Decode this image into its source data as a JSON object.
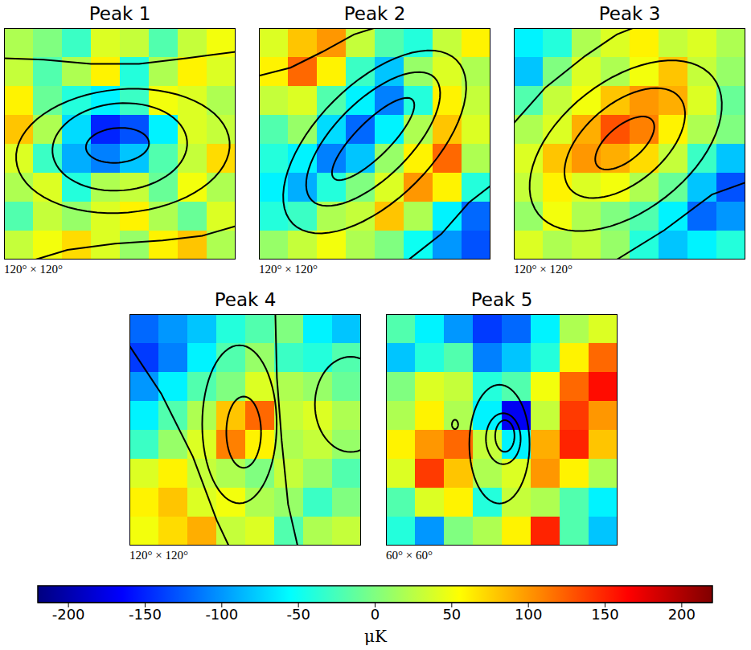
{
  "chart_data": [
    {
      "type": "heatmap",
      "title": "Peak 1",
      "extent_label": "120° × 120°",
      "xlim": [
        0,
        120
      ],
      "ylim": [
        0,
        120
      ],
      "tick_labels": false,
      "cells": [
        [
          20,
          0,
          -30,
          40,
          30,
          -20,
          30,
          50
        ],
        [
          30,
          -20,
          20,
          60,
          -40,
          20,
          60,
          40
        ],
        [
          60,
          -10,
          -40,
          -60,
          -30,
          50,
          40,
          20
        ],
        [
          80,
          20,
          -70,
          -150,
          -130,
          -60,
          40,
          30
        ],
        [
          40,
          -30,
          -90,
          -110,
          -80,
          -20,
          30,
          70
        ],
        [
          20,
          40,
          -40,
          20,
          30,
          -10,
          50,
          20
        ],
        [
          -20,
          30,
          10,
          40,
          60,
          20,
          -10,
          40
        ],
        [
          30,
          50,
          70,
          40,
          10,
          60,
          80,
          20
        ]
      ],
      "contours": [
        {
          "cx": 58.8,
          "cy": 59.2,
          "rx": 16.4,
          "ry": 9,
          "tilt": 5
        },
        {
          "cx": 60,
          "cy": 58.4,
          "rx": 35,
          "ry": 22.6,
          "tilt": 5
        },
        {
          "cx": 61.6,
          "cy": 56.3,
          "rx": 55.5,
          "ry": 32,
          "tilt": 5
        },
        {
          "points": [
            [
              0,
              104.4
            ],
            [
              20.5,
              103.6
            ],
            [
              45,
              101.5
            ],
            [
              70,
              101.5
            ],
            [
              94.5,
              104.4
            ],
            [
              120,
              107.7
            ]
          ]
        },
        {
          "points": [
            [
              16.4,
              0
            ],
            [
              32.9,
              5
            ],
            [
              57.5,
              8.2
            ],
            [
              82.2,
              9.9
            ],
            [
              102.7,
              12.3
            ],
            [
              120,
              17.3
            ]
          ]
        }
      ]
    },
    {
      "type": "heatmap",
      "title": "Peak 2",
      "extent_label": "120° × 120°",
      "xlim": [
        0,
        120
      ],
      "ylim": [
        0,
        120
      ],
      "tick_labels": false,
      "cells": [
        [
          40,
          80,
          100,
          30,
          -20,
          -40,
          30,
          60
        ],
        [
          60,
          120,
          60,
          -30,
          -80,
          10,
          40,
          20
        ],
        [
          30,
          40,
          -20,
          -60,
          -110,
          -40,
          60,
          30
        ],
        [
          -20,
          10,
          -70,
          -120,
          -60,
          20,
          80,
          40
        ],
        [
          -40,
          -60,
          -110,
          -80,
          10,
          60,
          120,
          20
        ],
        [
          -60,
          -90,
          -40,
          0,
          40,
          100,
          60,
          -40
        ],
        [
          -40,
          -30,
          20,
          30,
          80,
          20,
          -60,
          -120
        ],
        [
          10,
          30,
          50,
          20,
          0,
          -50,
          -100,
          -130
        ]
      ],
      "contours": [
        {
          "cx": 59.2,
          "cy": 62.5,
          "rx": 28.8,
          "ry": 9,
          "tilt": 45
        },
        {
          "cx": 59.2,
          "cy": 62.5,
          "rx": 45,
          "ry": 19.7,
          "tilt": 45
        },
        {
          "cx": 60,
          "cy": 61,
          "rx": 60,
          "ry": 30,
          "tilt": 45
        },
        {
          "points": [
            [
              0,
              95.3
            ],
            [
              16.4,
              99.5
            ],
            [
              32.9,
              107.7
            ],
            [
              49.3,
              116.7
            ],
            [
              59.6,
              120
            ]
          ]
        },
        {
          "points": [
            [
              77.7,
              0
            ],
            [
              94.5,
              13.2
            ],
            [
              108.9,
              29.6
            ],
            [
              120,
              38.2
            ]
          ]
        }
      ]
    },
    {
      "type": "heatmap",
      "title": "Peak 3",
      "extent_label": "120° × 120°",
      "xlim": [
        0,
        120
      ],
      "ylim": [
        0,
        120
      ],
      "tick_labels": false,
      "cells": [
        [
          -60,
          -40,
          20,
          40,
          60,
          30,
          40,
          20
        ],
        [
          -80,
          0,
          40,
          20,
          50,
          80,
          30,
          10
        ],
        [
          -20,
          30,
          50,
          80,
          100,
          90,
          40,
          -10
        ],
        [
          20,
          40,
          90,
          130,
          110,
          60,
          20,
          0
        ],
        [
          40,
          80,
          100,
          90,
          70,
          30,
          -30,
          -80
        ],
        [
          30,
          60,
          40,
          50,
          20,
          -10,
          -80,
          -130
        ],
        [
          10,
          50,
          20,
          0,
          -20,
          -60,
          -120,
          -100
        ],
        [
          40,
          20,
          30,
          10,
          -40,
          -80,
          -60,
          -40
        ]
      ],
      "contours": [
        {
          "cx": 57.5,
          "cy": 60.4,
          "rx": 18.5,
          "ry": 9,
          "tilt": 40
        },
        {
          "cx": 57.5,
          "cy": 60.4,
          "rx": 37,
          "ry": 20.5,
          "tilt": 40
        },
        {
          "cx": 58,
          "cy": 59,
          "rx": 57.5,
          "ry": 33.7,
          "tilt": 38
        },
        {
          "points": [
            [
              0,
              70.7
            ],
            [
              16.4,
              89.2
            ],
            [
              37,
              105.6
            ],
            [
              53.4,
              116.7
            ],
            [
              61.6,
              120
            ]
          ]
        },
        {
          "points": [
            [
              53.4,
              0
            ],
            [
              78,
              15.2
            ],
            [
              102.7,
              33.7
            ],
            [
              120,
              39.9
            ]
          ]
        }
      ]
    },
    {
      "type": "heatmap",
      "title": "Peak 4",
      "extent_label": "120° × 120°",
      "xlim": [
        0,
        120
      ],
      "ylim": [
        0,
        120
      ],
      "tick_labels": false,
      "cells": [
        [
          -120,
          -100,
          -80,
          -40,
          -20,
          0,
          -60,
          -80
        ],
        [
          -140,
          -110,
          -60,
          -20,
          10,
          -30,
          -40,
          -20
        ],
        [
          -100,
          -60,
          -20,
          0,
          40,
          20,
          10,
          -10
        ],
        [
          -60,
          -20,
          20,
          80,
          120,
          30,
          40,
          20
        ],
        [
          -30,
          10,
          40,
          110,
          60,
          20,
          30,
          10
        ],
        [
          40,
          60,
          30,
          20,
          0,
          30,
          10,
          -20
        ],
        [
          60,
          80,
          40,
          50,
          20,
          10,
          -30,
          0
        ],
        [
          50,
          70,
          90,
          30,
          40,
          -20,
          20,
          30
        ]
      ],
      "contours": [
        {
          "cx": 59.2,
          "cy": 58.8,
          "rx": 9,
          "ry": 18.5,
          "tilt": 0
        },
        {
          "cx": 57,
          "cy": 62.9,
          "rx": 19.3,
          "ry": 41,
          "tilt": 0
        },
        {
          "cx": 114.6,
          "cy": 73.2,
          "rx": 18.5,
          "ry": 24.7,
          "tilt": 0
        },
        {
          "points": [
            [
              0,
              103.6
            ],
            [
              16.4,
              78.9
            ],
            [
              32.9,
              46
            ],
            [
              45.2,
              13.2
            ],
            [
              51.4,
              0
            ]
          ]
        },
        {
          "points": [
            [
              75.6,
              120
            ],
            [
              76.4,
              87.1
            ],
            [
              78.9,
              54.2
            ],
            [
              82.2,
              21.4
            ],
            [
              87.1,
              0
            ]
          ]
        }
      ]
    },
    {
      "type": "heatmap",
      "title": "Peak 5",
      "extent_label": "60° × 60°",
      "xlim": [
        0,
        60
      ],
      "ylim": [
        0,
        60
      ],
      "tick_labels": false,
      "cells": [
        [
          -20,
          -60,
          -100,
          -140,
          -120,
          -60,
          20,
          40
        ],
        [
          -80,
          -40,
          -20,
          -110,
          -80,
          -40,
          60,
          120
        ],
        [
          0,
          40,
          30,
          -40,
          -20,
          50,
          120,
          160
        ],
        [
          20,
          60,
          20,
          -60,
          -170,
          30,
          140,
          100
        ],
        [
          60,
          100,
          120,
          30,
          -60,
          90,
          150,
          80
        ],
        [
          40,
          140,
          80,
          20,
          40,
          100,
          60,
          20
        ],
        [
          -20,
          40,
          60,
          -40,
          30,
          20,
          -20,
          -60
        ],
        [
          -40,
          -100,
          0,
          20,
          60,
          150,
          -20,
          -80
        ]
      ],
      "contours": [
        {
          "cx": 30.8,
          "cy": 28.4,
          "rx": 2.5,
          "ry": 4.1,
          "tilt": 0
        },
        {
          "cx": 30.4,
          "cy": 27.7,
          "rx": 4.5,
          "ry": 6.6,
          "tilt": 0
        },
        {
          "cx": 29.4,
          "cy": 26.3,
          "rx": 7.8,
          "ry": 15.4,
          "tilt": 0
        },
        {
          "cx": 17.9,
          "cy": 31.4,
          "rx": 0.8,
          "ry": 1.2,
          "tilt": 0
        }
      ]
    }
  ],
  "colorbar": {
    "range": [
      -220,
      220
    ],
    "ticks": [
      -200,
      -150,
      -100,
      -50,
      0,
      50,
      100,
      150,
      200
    ],
    "label": "μK"
  }
}
